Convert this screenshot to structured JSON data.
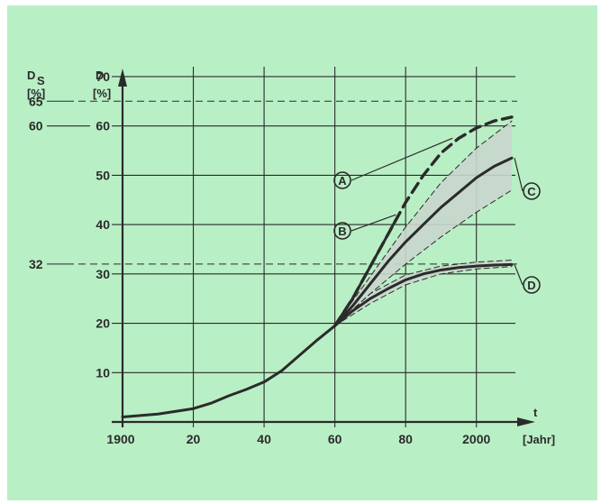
{
  "chart_data": {
    "type": "line",
    "x_axis": {
      "label": "t",
      "unit": "[Jahr]",
      "range": [
        1900,
        2010
      ],
      "ticks": [
        1900,
        1920,
        1940,
        1960,
        1980,
        2000
      ],
      "tick_labels": [
        "1900",
        "20",
        "40",
        "60",
        "80",
        "2000"
      ]
    },
    "y_axis": {
      "label": "D",
      "unit": "[%]",
      "range": [
        0,
        72
      ],
      "ticks": [
        10,
        20,
        30,
        40,
        50,
        60,
        70
      ],
      "tick_labels": [
        "10",
        "20",
        "30",
        "40",
        "50",
        "60",
        "70"
      ]
    },
    "secondary_axis": {
      "label_main": "D",
      "label_sub": "S",
      "unit": "[%]",
      "ticks": [
        65,
        60,
        32
      ],
      "tick_labels": [
        "65",
        "60",
        "32"
      ]
    },
    "grid": true,
    "saturation_lines": [
      65,
      32
    ],
    "series": [
      {
        "marker": "",
        "style": "solid-bold",
        "x": [
          1900,
          1910,
          1920,
          1925,
          1930,
          1935,
          1940,
          1945,
          1950,
          1955,
          1960
        ],
        "y": [
          1.0,
          1.6,
          2.7,
          3.8,
          5.3,
          6.6,
          8.1,
          10.4,
          13.5,
          16.6,
          19.5
        ]
      },
      {
        "marker": "A",
        "style": "dashed-bold",
        "x": [
          1960,
          1965,
          1970,
          1975,
          1980,
          1985,
          1990,
          1995,
          2000,
          2005,
          2010
        ],
        "y": [
          19.5,
          25.0,
          31.5,
          38.0,
          44.5,
          50.0,
          54.5,
          57.5,
          59.6,
          61.0,
          61.8
        ]
      },
      {
        "marker": "B",
        "style": "solid-bold",
        "x": [
          1960,
          1965,
          1970,
          1975,
          1978
        ],
        "y": [
          19.5,
          25.0,
          31.5,
          38.0,
          42.0
        ]
      },
      {
        "marker": "C",
        "style": "solid-bold",
        "x": [
          1960,
          1965,
          1970,
          1975,
          1980,
          1985,
          1990,
          1995,
          2000,
          2005,
          2010
        ],
        "y": [
          19.5,
          23.5,
          28.0,
          32.5,
          36.5,
          40.0,
          43.5,
          46.5,
          49.5,
          51.8,
          53.5
        ]
      },
      {
        "marker": "C_band_upper",
        "style": "thin-dashed",
        "x": [
          1960,
          1970,
          1980,
          1990,
          2000,
          2010
        ],
        "y": [
          19.5,
          29.5,
          39.5,
          48.5,
          55.5,
          61.0
        ]
      },
      {
        "marker": "C_band_lower",
        "style": "thin-dashed",
        "x": [
          1960,
          1970,
          1980,
          1990,
          2000,
          2010
        ],
        "y": [
          19.5,
          26.0,
          32.0,
          37.5,
          42.5,
          47.0
        ]
      },
      {
        "marker": "D",
        "style": "solid-bold",
        "x": [
          1960,
          1965,
          1970,
          1975,
          1980,
          1985,
          1990,
          1995,
          2000,
          2005,
          2010
        ],
        "y": [
          19.5,
          22.5,
          25.0,
          27.0,
          28.8,
          30.0,
          30.8,
          31.3,
          31.6,
          31.8,
          31.9
        ]
      },
      {
        "marker": "D_band_upper",
        "style": "thin-dashed",
        "x": [
          1960,
          1970,
          1980,
          1990,
          2000,
          2010
        ],
        "y": [
          19.5,
          26.0,
          29.8,
          31.6,
          32.4,
          32.8
        ]
      },
      {
        "marker": "D_band_lower",
        "style": "thin-dashed",
        "x": [
          1960,
          1970,
          1980,
          1990,
          2000,
          2010
        ],
        "y": [
          19.5,
          24.0,
          27.8,
          30.0,
          31.0,
          31.5
        ]
      }
    ],
    "markers": [
      "A",
      "B",
      "C",
      "D"
    ],
    "colors": {
      "background": "#b9efc5",
      "ink": "#2b2b2b",
      "band_fill": "#c9d6cc"
    }
  }
}
